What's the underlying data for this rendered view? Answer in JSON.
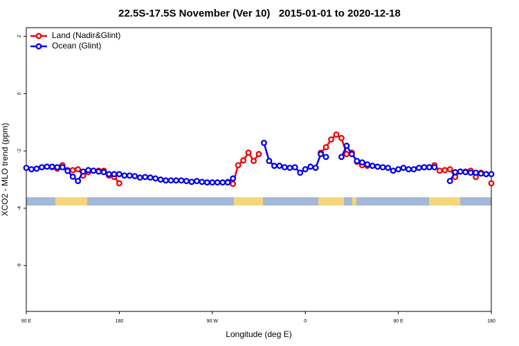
{
  "chart_data": {
    "type": "line",
    "title": "22.5S-17.5S November (Ver 10)   2015-01-01 to 2020-12-18",
    "x_label": "Longitude (deg E)",
    "y_label": "XCO2 - MLO trend (ppm)",
    "legend": "topleft",
    "xlim": [
      90,
      540
    ],
    "ylim": [
      -7.6,
      2.3
    ],
    "xticks": [
      {
        "value": 90,
        "label": "90 E"
      },
      {
        "value": 180,
        "label": "180"
      },
      {
        "value": 270,
        "label": "90 W"
      },
      {
        "value": 360,
        "label": "0"
      },
      {
        "value": 450,
        "label": "90 E"
      },
      {
        "value": 540,
        "label": "180"
      }
    ],
    "yticks": [
      2,
      0,
      -2,
      -4,
      -6
    ],
    "x": [
      90,
      95,
      100,
      105,
      110,
      115,
      120,
      125,
      130,
      135,
      140,
      145,
      150,
      155,
      160,
      165,
      170,
      175,
      180,
      185,
      190,
      195,
      200,
      205,
      210,
      215,
      220,
      225,
      230,
      235,
      240,
      245,
      250,
      255,
      260,
      265,
      270,
      275,
      280,
      285,
      290,
      295,
      300,
      305,
      310,
      315,
      320,
      325,
      330,
      335,
      340,
      345,
      350,
      355,
      360,
      365,
      370,
      375,
      380,
      385,
      390,
      395,
      400,
      405,
      410,
      415,
      420,
      425,
      430,
      435,
      440,
      445,
      450,
      455,
      460,
      465,
      470,
      475,
      480,
      485,
      490,
      495,
      500,
      505,
      510,
      515,
      520,
      525,
      530,
      535,
      540
    ],
    "series": [
      {
        "name": "Land (Nadir&Glint)",
        "color": "#ee0000",
        "values": [
          null,
          null,
          null,
          null,
          null,
          -2.57,
          -2.62,
          -2.5,
          -2.67,
          -2.67,
          -2.64,
          -2.86,
          -2.74,
          -2.69,
          -2.69,
          -2.69,
          -2.86,
          -2.91,
          -3.13,
          null,
          null,
          null,
          null,
          null,
          null,
          null,
          null,
          null,
          null,
          null,
          null,
          null,
          null,
          null,
          null,
          null,
          null,
          null,
          null,
          -3.08,
          -3.15,
          -2.5,
          -2.33,
          -2.06,
          -2.35,
          -2.11,
          null,
          null,
          null,
          null,
          null,
          null,
          null,
          null,
          null,
          null,
          null,
          -2.06,
          -1.87,
          -1.6,
          -1.43,
          -1.55,
          -2.11,
          -2.06,
          -2.38,
          -2.5,
          -2.52,
          null,
          null,
          null,
          null,
          null,
          null,
          null,
          null,
          null,
          null,
          -2.57,
          -2.57,
          -2.5,
          -2.69,
          -2.67,
          -2.64,
          -2.91,
          -2.72,
          -2.72,
          -2.69,
          -2.91,
          -2.76,
          null,
          -3.13
        ]
      },
      {
        "name": "Ocean (Glint)",
        "color": "#0000ee",
        "values": [
          -2.59,
          -2.64,
          -2.62,
          -2.57,
          -2.55,
          -2.55,
          -2.57,
          -2.57,
          -2.7,
          -2.9,
          -3.05,
          -2.72,
          -2.67,
          -2.69,
          -2.72,
          -2.74,
          -2.81,
          -2.81,
          -2.81,
          -2.86,
          -2.86,
          -2.88,
          -2.93,
          -2.91,
          -2.93,
          -2.96,
          -3.0,
          -3.03,
          -3.03,
          -3.03,
          -3.03,
          -3.05,
          -3.08,
          -3.05,
          -3.08,
          -3.1,
          -3.1,
          -3.1,
          -3.1,
          -3.1,
          -2.96,
          null,
          null,
          null,
          null,
          null,
          -1.72,
          -2.35,
          -2.52,
          -2.52,
          -2.57,
          -2.59,
          -2.57,
          -2.76,
          -2.64,
          -2.55,
          -2.59,
          -2.11,
          -2.21,
          null,
          null,
          -2.21,
          -1.82,
          -2.11,
          -2.35,
          -2.4,
          -2.47,
          -2.52,
          -2.55,
          -2.57,
          -2.59,
          -2.69,
          -2.64,
          -2.59,
          -2.64,
          -2.64,
          -2.59,
          -2.57,
          -2.57,
          -2.57,
          null,
          null,
          -3.05,
          -2.74,
          -2.72,
          -2.74,
          -2.76,
          -2.76,
          -2.79,
          -2.81,
          -2.81
        ]
      }
    ]
  }
}
